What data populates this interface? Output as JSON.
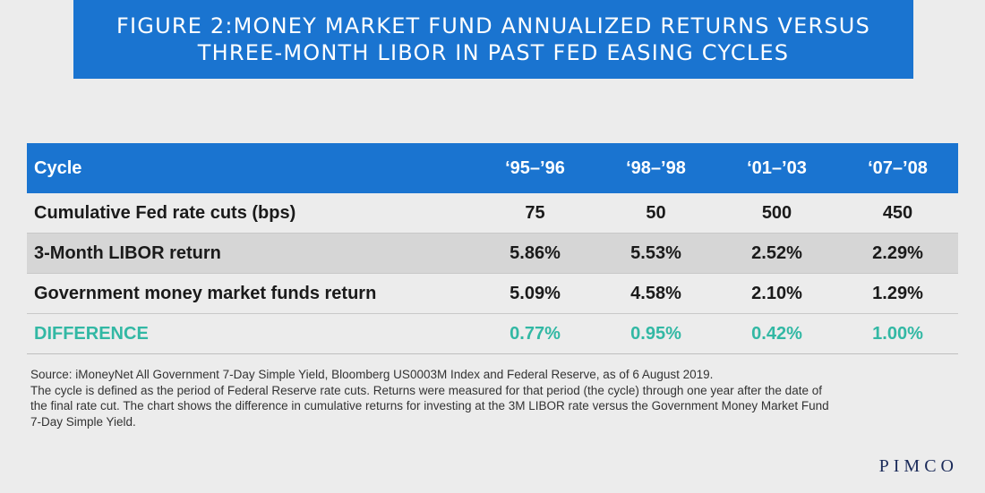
{
  "title": {
    "line1": "FIGURE 2:MONEY MARKET FUND ANNUALIZED RETURNS VERSUS",
    "line2": "THREE-MONTH LIBOR IN PAST FED EASING CYCLES"
  },
  "table": {
    "header": {
      "label": "Cycle",
      "cols": [
        "‘95–’96",
        "‘98–’98",
        "‘01–’03",
        "‘07–’08"
      ]
    },
    "rows": [
      {
        "label": "Cumulative Fed rate cuts (bps)",
        "values": [
          "75",
          "50",
          "500",
          "450"
        ]
      },
      {
        "label": "3-Month LIBOR return",
        "values": [
          "5.86%",
          "5.53%",
          "2.52%",
          "2.29%"
        ]
      },
      {
        "label": "Government money market funds return",
        "values": [
          "5.09%",
          "4.58%",
          "2.10%",
          "1.29%"
        ]
      },
      {
        "label": "DIFFERENCE",
        "values": [
          "0.77%",
          "0.95%",
          "0.42%",
          "1.00%"
        ]
      }
    ]
  },
  "footnote": {
    "source": "Source: iMoneyNet All Government 7-Day Simple Yield, Bloomberg US0003M Index and Federal Reserve, as of 6 August 2019.",
    "note": "The cycle is defined as the period of Federal Reserve rate cuts. Returns were measured for that period (the cycle) through one year after the date of the final rate cut. The chart shows the difference in cumulative returns for investing at the 3M LIBOR rate versus the Government Money Market Fund 7-Day Simple Yield."
  },
  "logo": "PIMCO",
  "colors": {
    "banner_blue": "#1a74d0",
    "difference_teal": "#32b8a4",
    "logo_navy": "#1b2b5a"
  }
}
